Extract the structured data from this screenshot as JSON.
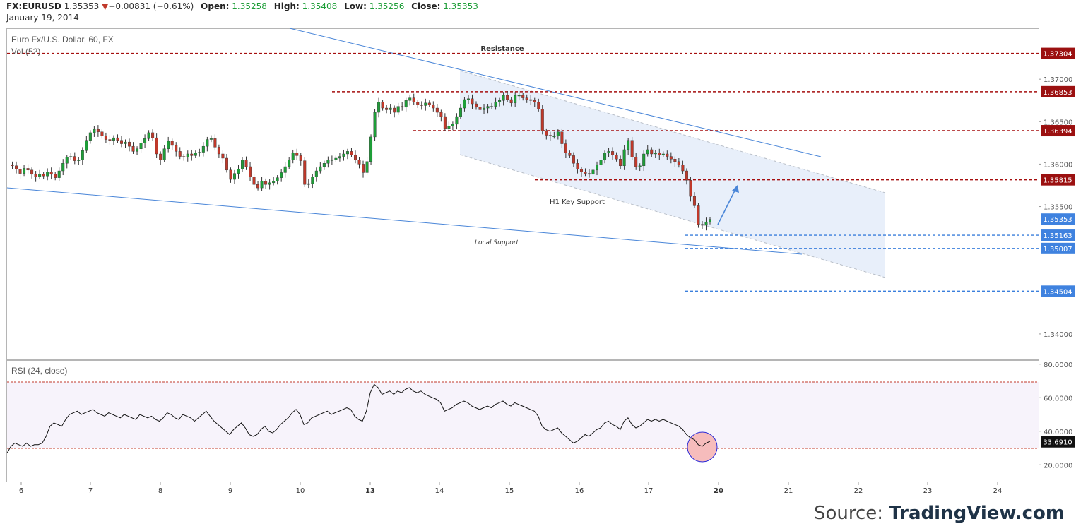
{
  "header": {
    "symbol": "FX:EURUSD",
    "last": "1.35353",
    "change": "−0.00831 (−0.61%)",
    "open_label": "Open:",
    "open": "1.35258",
    "high_label": "High:",
    "high": "1.35408",
    "low_label": "Low:",
    "low": "1.35256",
    "close_label": "Close:",
    "close": "1.35353",
    "date": "January 19, 2014"
  },
  "colors": {
    "up": "#1e9e38",
    "down": "#c0392b",
    "red_level": "#a50f0f",
    "blue_level": "#3a7fdc",
    "trendline": "#4a86d8",
    "channel_fill": "#e6eefa",
    "rsi_band": "#f7f3fb",
    "rsi_circle": "#f6bcbc"
  },
  "source": {
    "label": "Source:",
    "brand": "TradingView.com"
  },
  "chart_data": [
    {
      "type": "candlestick",
      "title": "Euro Fx/U.S. Dollar, 60, FX",
      "subtitle": "Vol (52)",
      "ylim": [
        1.337,
        1.376
      ],
      "y_ticks": [
        "1.37000",
        "1.36500",
        "1.36000",
        "1.35500",
        "1.34000"
      ],
      "x_ticks": [
        "6",
        "7",
        "8",
        "9",
        "10",
        "13",
        "14",
        "15",
        "16",
        "17",
        "20",
        "21",
        "22",
        "23",
        "24"
      ],
      "x_ticks_bold": [
        "13",
        "20"
      ],
      "price_series": [
        1.3599,
        1.3598,
        1.3594,
        1.3589,
        1.3595,
        1.3593,
        1.3588,
        1.3585,
        1.3588,
        1.3586,
        1.3591,
        1.3588,
        1.3584,
        1.3592,
        1.3601,
        1.3608,
        1.3609,
        1.3604,
        1.3605,
        1.3616,
        1.3628,
        1.3637,
        1.3641,
        1.3638,
        1.3633,
        1.3629,
        1.3628,
        1.3631,
        1.3628,
        1.3624,
        1.3626,
        1.3621,
        1.3615,
        1.3618,
        1.3625,
        1.363,
        1.3637,
        1.3631,
        1.3612,
        1.3605,
        1.3618,
        1.3627,
        1.3622,
        1.3615,
        1.3609,
        1.3608,
        1.3612,
        1.361,
        1.3613,
        1.3614,
        1.3621,
        1.3629,
        1.363,
        1.362,
        1.3612,
        1.3607,
        1.3593,
        1.3582,
        1.3589,
        1.3594,
        1.3605,
        1.3597,
        1.3585,
        1.3576,
        1.3572,
        1.358,
        1.3576,
        1.3578,
        1.358,
        1.3584,
        1.359,
        1.3597,
        1.3605,
        1.3613,
        1.361,
        1.3604,
        1.3576,
        1.3577,
        1.3585,
        1.3592,
        1.3597,
        1.3601,
        1.3605,
        1.3605,
        1.3607,
        1.3609,
        1.3612,
        1.3615,
        1.3611,
        1.3605,
        1.36,
        1.359,
        1.3603,
        1.3632,
        1.3661,
        1.3673,
        1.3666,
        1.3664,
        1.3666,
        1.3661,
        1.3668,
        1.3667,
        1.3675,
        1.3678,
        1.3673,
        1.367,
        1.3669,
        1.3672,
        1.367,
        1.3666,
        1.3661,
        1.3656,
        1.3642,
        1.3645,
        1.3647,
        1.3656,
        1.3666,
        1.3676,
        1.3677,
        1.3671,
        1.3667,
        1.3664,
        1.3666,
        1.3668,
        1.3668,
        1.3673,
        1.3675,
        1.3681,
        1.3676,
        1.3672,
        1.3681,
        1.3681,
        1.3678,
        1.3676,
        1.3675,
        1.3673,
        1.3665,
        1.3639,
        1.3634,
        1.3633,
        1.3633,
        1.3638,
        1.3624,
        1.3613,
        1.361,
        1.3601,
        1.3594,
        1.3591,
        1.3589,
        1.3588,
        1.3593,
        1.3599,
        1.3605,
        1.3613,
        1.3615,
        1.3611,
        1.3606,
        1.3598,
        1.3617,
        1.3628,
        1.3608,
        1.3597,
        1.3598,
        1.3612,
        1.3617,
        1.3612,
        1.3613,
        1.3611,
        1.3612,
        1.3609,
        1.3606,
        1.3603,
        1.3599,
        1.3592,
        1.3581,
        1.3562,
        1.3551,
        1.3529,
        1.3528,
        1.3532,
        1.3535
      ],
      "horizontal_levels": [
        {
          "value": 1.37304,
          "label": "1.37304",
          "color": "red"
        },
        {
          "value": 1.36853,
          "label": "1.36853",
          "color": "red"
        },
        {
          "value": 1.36394,
          "label": "1.36394",
          "color": "red"
        },
        {
          "value": 1.35815,
          "label": "1.35815",
          "color": "red"
        },
        {
          "value": 1.35353,
          "label": "1.35353",
          "color": "blue"
        },
        {
          "value": 1.35163,
          "label": "1.35163",
          "color": "blue"
        },
        {
          "value": 1.35007,
          "label": "1.35007",
          "color": "blue"
        },
        {
          "value": 1.34504,
          "label": "1.34504",
          "color": "blue"
        }
      ],
      "annotations": [
        "Resistance",
        "H1 Key Support",
        "Local Support"
      ]
    },
    {
      "type": "line",
      "title": "RSI (24, close)",
      "ylim": [
        10,
        82
      ],
      "y_ticks": [
        "80.0000",
        "60.0000",
        "40.0000",
        "20.0000"
      ],
      "band": [
        30,
        70
      ],
      "last_value": "33.6910",
      "values": [
        27,
        31,
        33,
        32,
        31,
        33,
        31,
        32,
        32,
        33,
        37,
        43,
        45,
        44,
        43,
        47,
        50,
        51,
        52,
        50,
        51,
        52,
        53,
        51,
        50,
        49,
        51,
        50,
        49,
        48,
        50,
        49,
        48,
        47,
        50,
        49,
        48,
        49,
        47,
        46,
        48,
        51,
        50,
        48,
        47,
        50,
        49,
        48,
        46,
        48,
        50,
        52,
        49,
        46,
        44,
        42,
        40,
        38,
        41,
        43,
        45,
        42,
        38,
        37,
        38,
        41,
        43,
        40,
        39,
        41,
        44,
        46,
        48,
        51,
        53,
        50,
        44,
        45,
        48,
        49,
        50,
        51,
        52,
        50,
        51,
        52,
        53,
        54,
        53,
        49,
        47,
        46,
        52,
        63,
        68,
        66,
        62,
        63,
        64,
        62,
        64,
        63,
        65,
        66,
        64,
        63,
        64,
        62,
        61,
        60,
        59,
        57,
        52,
        53,
        54,
        56,
        57,
        58,
        57,
        55,
        54,
        53,
        54,
        55,
        54,
        56,
        57,
        58,
        56,
        55,
        57,
        56,
        55,
        54,
        53,
        52,
        49,
        43,
        41,
        40,
        41,
        42,
        39,
        37,
        35,
        33,
        34,
        36,
        38,
        37,
        39,
        41,
        42,
        45,
        46,
        44,
        43,
        41,
        46,
        48,
        44,
        42,
        43,
        45,
        47,
        46,
        47,
        46,
        47,
        46,
        45,
        44,
        43,
        41,
        38,
        36,
        35,
        32,
        31,
        33,
        34
      ]
    }
  ]
}
